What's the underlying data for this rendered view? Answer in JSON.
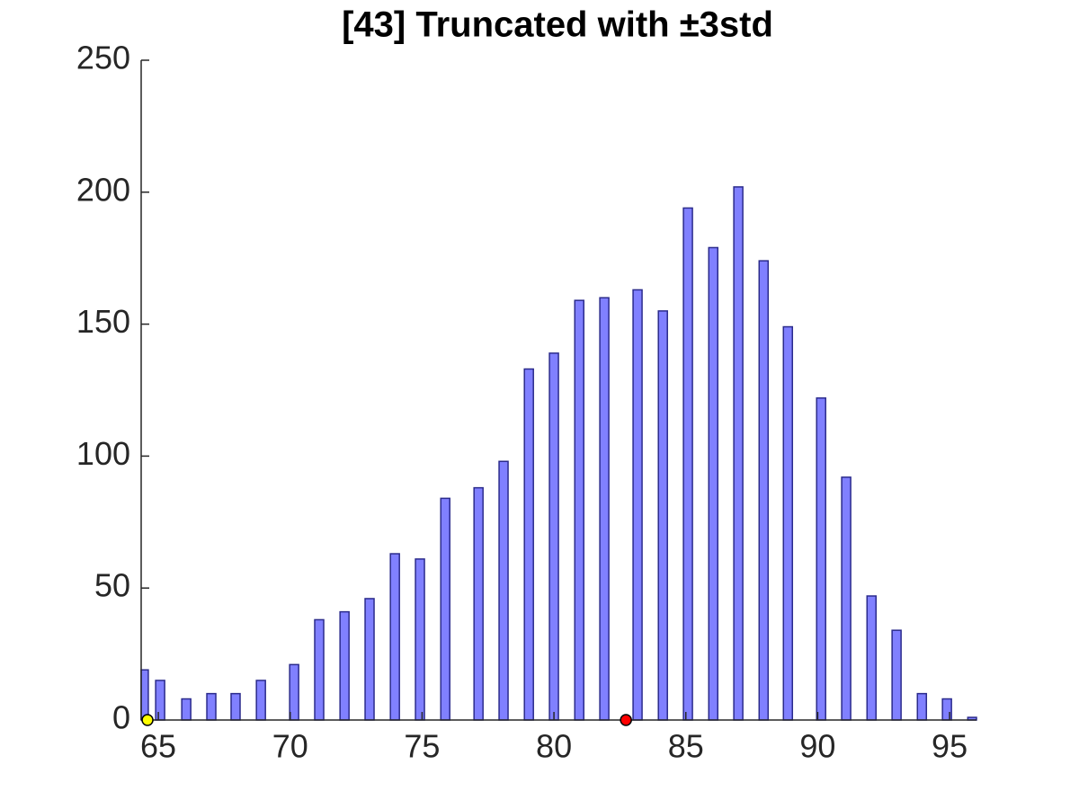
{
  "chart_data": {
    "type": "bar",
    "title": "[43] Truncated with ±3std",
    "x": [
      64.45,
      65.07,
      66.06,
      67.01,
      67.93,
      68.89,
      70.15,
      71.1,
      72.06,
      73.01,
      73.97,
      74.92,
      75.88,
      77.14,
      78.09,
      79.05,
      80.0,
      80.96,
      81.91,
      83.17,
      84.13,
      85.08,
      86.04,
      86.99,
      87.95,
      88.87,
      90.13,
      91.08,
      92.04,
      92.99,
      93.95,
      94.9,
      95.86
    ],
    "values": [
      19,
      15,
      8,
      10,
      10,
      15,
      21,
      38,
      41,
      46,
      63,
      61,
      84,
      88,
      98,
      133,
      139,
      159,
      160,
      163,
      155,
      194,
      179,
      202,
      174,
      149,
      122,
      92,
      47,
      34,
      10,
      8,
      1
    ],
    "color": "#8080ff",
    "edge_color": "#2b2b8c",
    "markers": [
      {
        "x": 64.59,
        "y": 0,
        "color": "#ffff00"
      },
      {
        "x": 82.73,
        "y": 0,
        "color": "#ff0000"
      }
    ],
    "xlim": [
      64.35,
      96.02
    ],
    "xticks": [
      65,
      70,
      75,
      80,
      85,
      90,
      95
    ],
    "ylim": [
      0,
      250
    ],
    "yticks": [
      0,
      50,
      100,
      150,
      200,
      250
    ]
  }
}
